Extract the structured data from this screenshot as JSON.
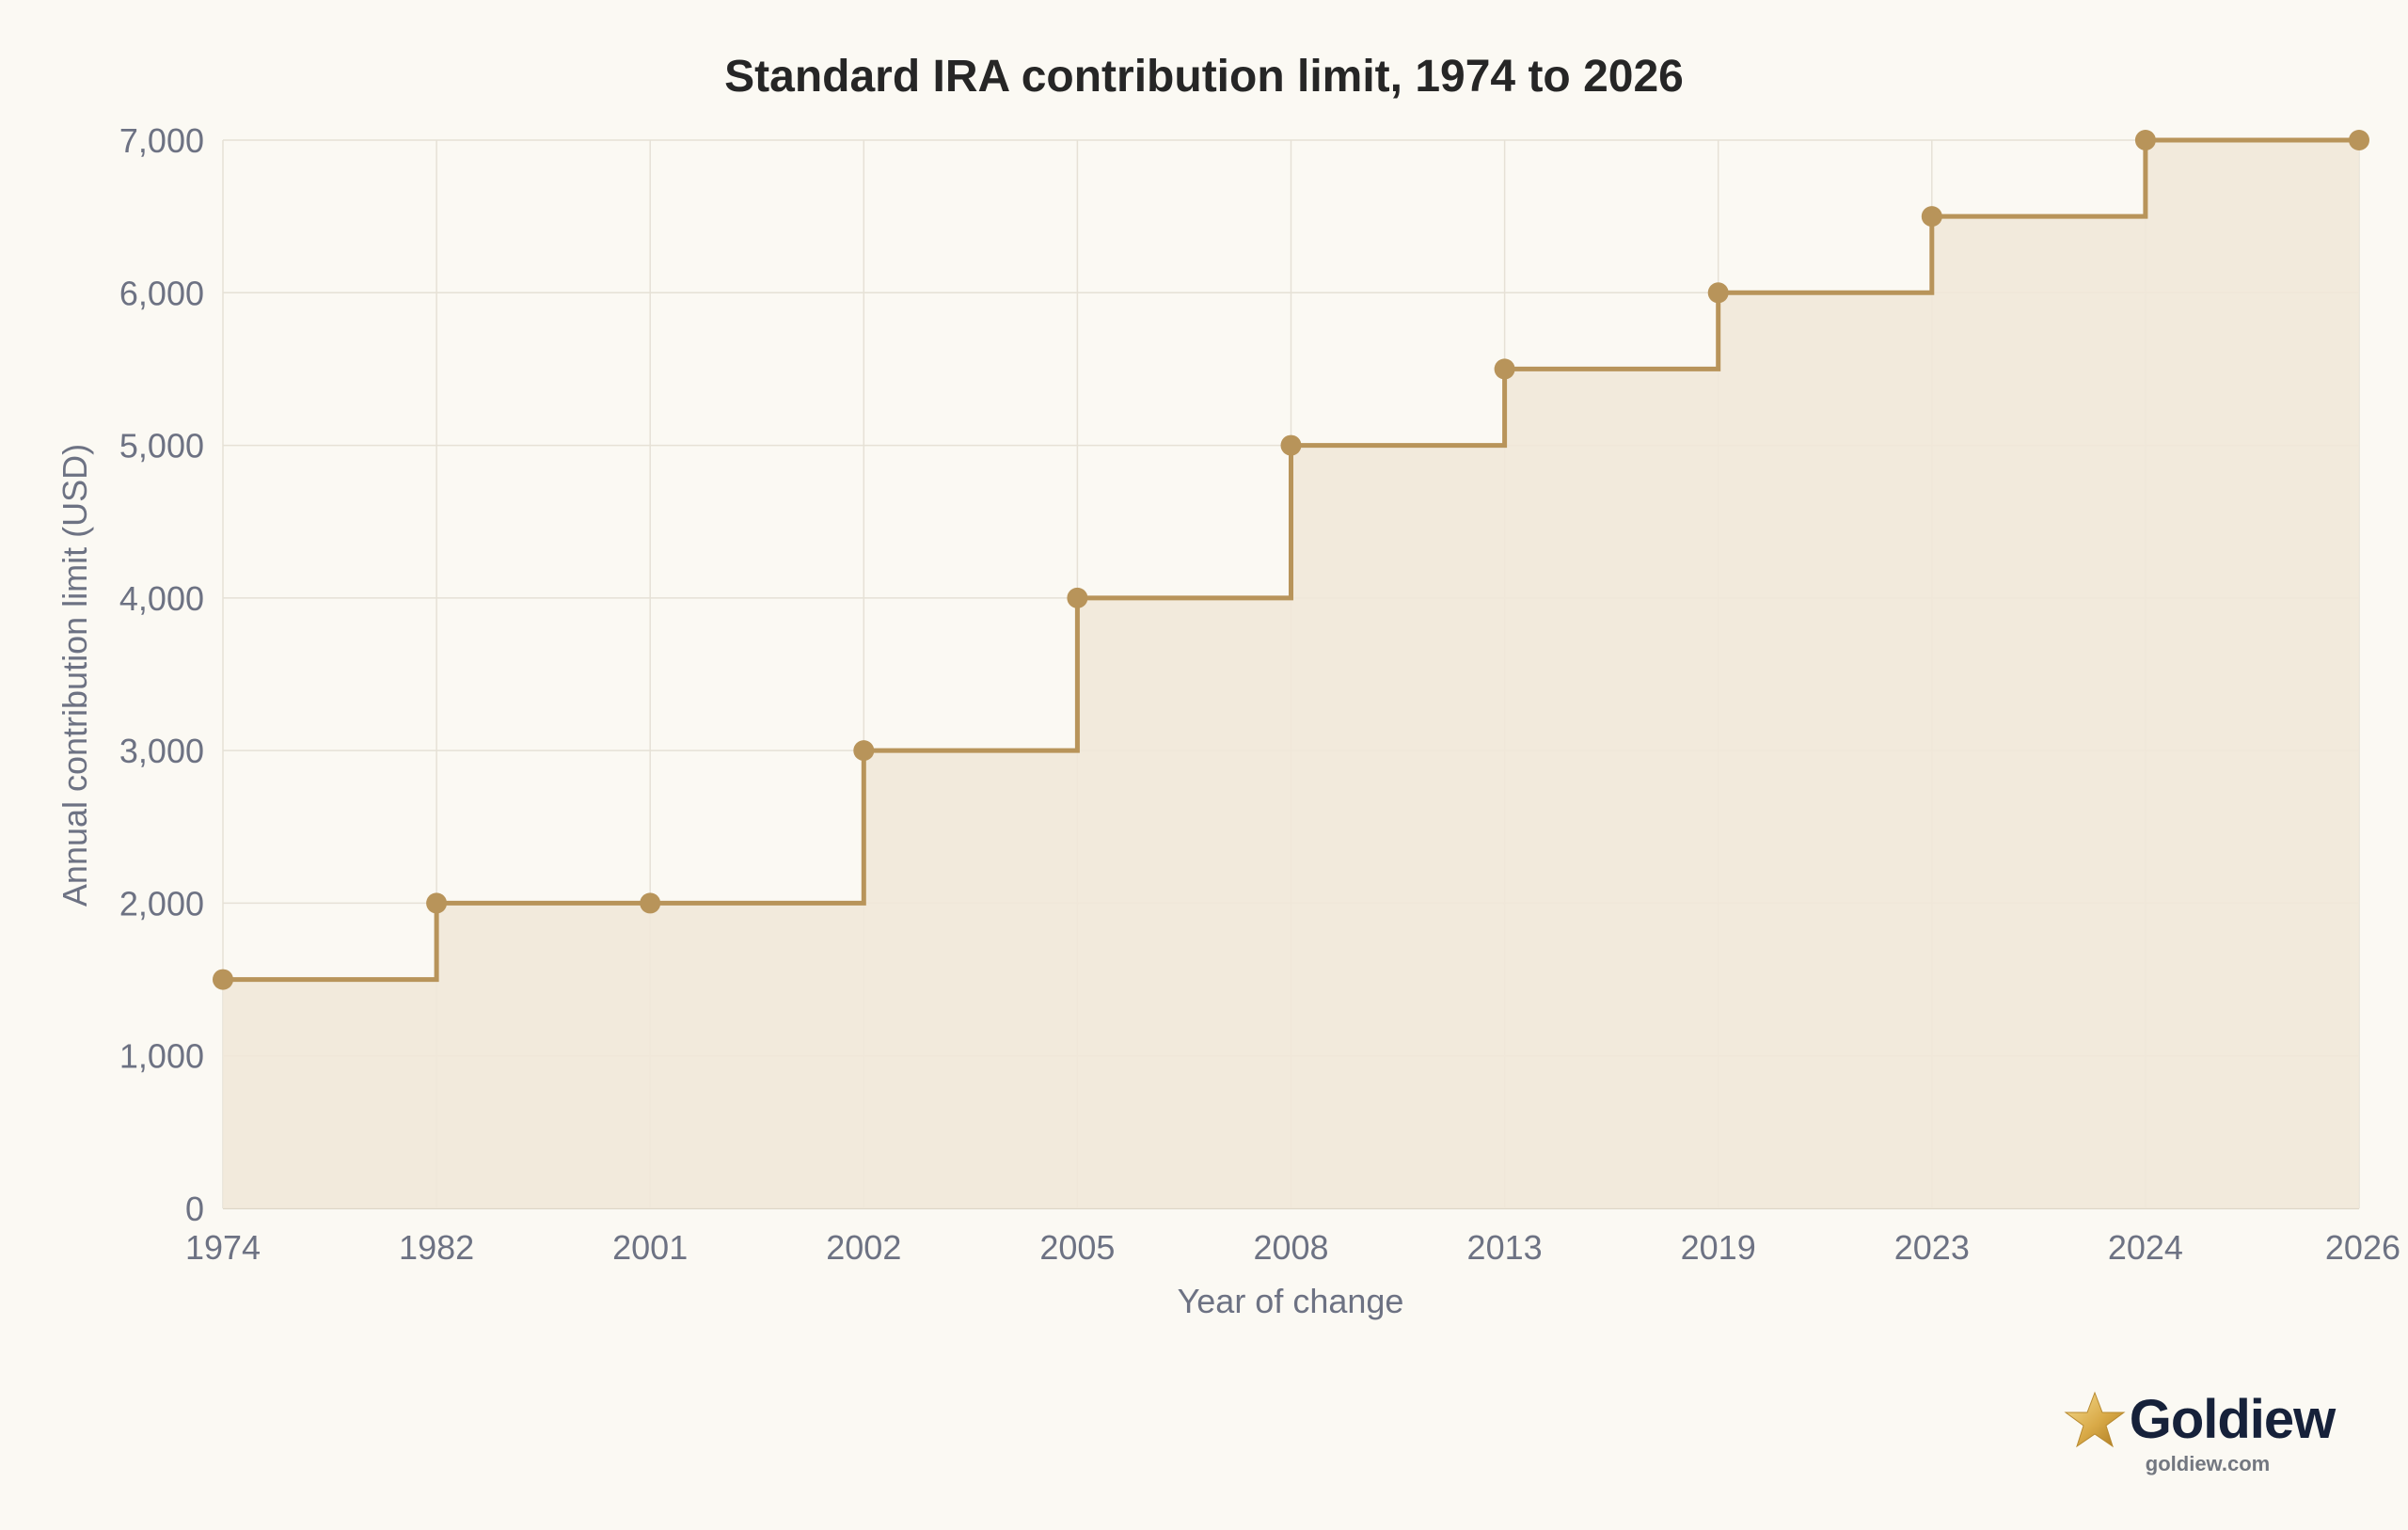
{
  "chart_data": {
    "type": "line",
    "step": "after",
    "title": "Standard IRA contribution limit, 1974 to 2026",
    "xlabel": "Year of change",
    "ylabel": "Annual contribution limit (USD)",
    "categories": [
      "1974",
      "1982",
      "2001",
      "2002",
      "2005",
      "2008",
      "2013",
      "2019",
      "2023",
      "2024",
      "2026"
    ],
    "series": [
      {
        "values": [
          1500,
          2000,
          2000,
          3000,
          4000,
          5000,
          5500,
          6000,
          6500,
          7000,
          7000
        ]
      }
    ],
    "ylim": [
      0,
      7000
    ],
    "yticks": [
      0,
      1000,
      2000,
      3000,
      4000,
      5000,
      6000,
      7000
    ],
    "ytick_labels": [
      "0",
      "1,000",
      "2,000",
      "3,000",
      "4,000",
      "5,000",
      "6,000",
      "7,000"
    ],
    "grid": true,
    "filled": true,
    "colors": {
      "line": "#b8945a",
      "fill": "#f1e8d9",
      "grid": "#e6e1d6",
      "text": "#6d7283",
      "title": "#262626",
      "background": "#fbf9f3"
    }
  },
  "brand": {
    "name": "Goldiew",
    "url": "goldiew.com",
    "icon": "star-icon"
  }
}
